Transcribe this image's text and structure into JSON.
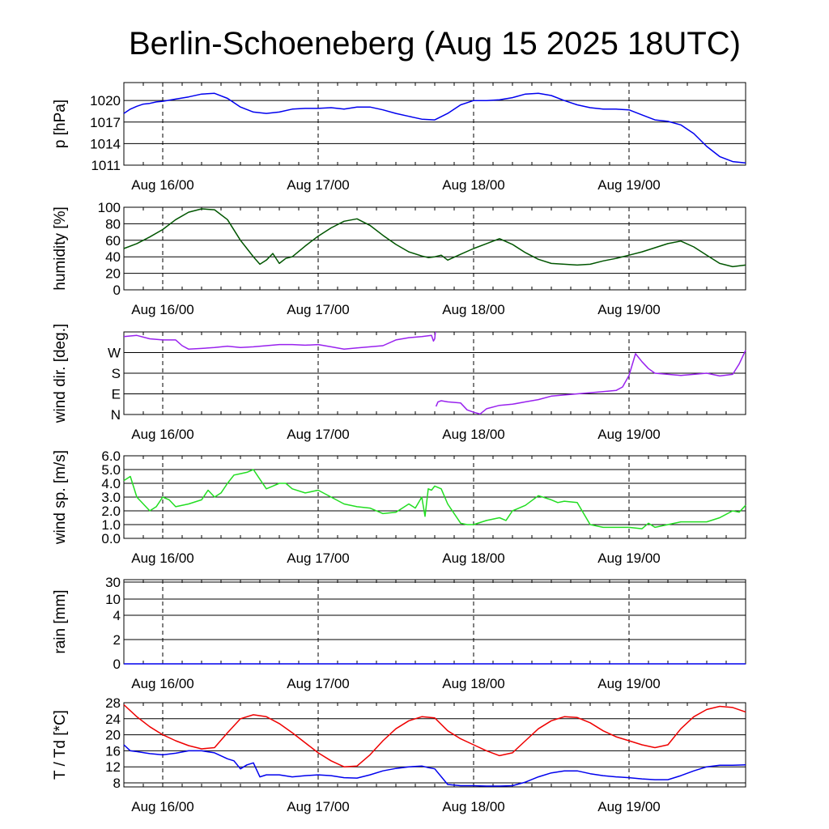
{
  "title": "Berlin-Schoeneberg (Aug 15 2025 18UTC)",
  "time_axis": {
    "tick_labels": [
      "Aug 16/00",
      "Aug 17/00",
      "Aug 18/00",
      "Aug 19/00"
    ],
    "tick_hours": [
      6,
      30,
      54,
      78
    ],
    "range_hours": [
      0,
      96
    ]
  },
  "chart_data": [
    {
      "type": "line",
      "ylabel": "p [hPa]",
      "ylim": [
        1011,
        1022.5
      ],
      "yticks": [
        1011,
        1014,
        1017,
        1020
      ],
      "ytick_labels": [
        "1011",
        "1014",
        "1017",
        "1020"
      ],
      "grid": "horizontal lines at y ticks, dashed vertical lines at day boundaries",
      "series": [
        {
          "color": "#0000ee",
          "x": [
            0,
            1,
            2,
            3,
            4,
            5,
            6,
            8,
            10,
            12,
            14,
            16,
            18,
            20,
            22,
            24,
            26,
            28,
            30,
            32,
            34,
            36,
            38,
            40,
            42,
            44,
            46,
            48,
            50,
            52,
            54,
            56,
            58,
            60,
            62,
            64,
            66,
            68,
            70,
            72,
            74,
            76,
            78,
            80,
            82,
            84,
            86,
            88,
            90,
            92,
            94,
            96
          ],
          "y": [
            1018.2,
            1018.8,
            1019.2,
            1019.5,
            1019.6,
            1019.8,
            1019.9,
            1020.2,
            1020.5,
            1020.9,
            1021.0,
            1020.3,
            1019.1,
            1018.4,
            1018.2,
            1018.4,
            1018.8,
            1018.9,
            1018.9,
            1019.0,
            1018.8,
            1019.1,
            1019.1,
            1018.7,
            1018.2,
            1017.8,
            1017.4,
            1017.3,
            1018.2,
            1019.4,
            1020.0,
            1020.0,
            1020.1,
            1020.4,
            1020.9,
            1021.0,
            1020.7,
            1020.0,
            1019.4,
            1019.0,
            1018.8,
            1018.8,
            1018.7,
            1018.0,
            1017.3,
            1017.1,
            1016.6,
            1015.4,
            1013.6,
            1012.2,
            1011.5,
            1011.3
          ]
        }
      ]
    },
    {
      "type": "line",
      "ylabel": "humidity [%]",
      "ylim": [
        0,
        100
      ],
      "yticks": [
        0,
        20,
        40,
        60,
        80,
        100
      ],
      "ytick_labels": [
        "0",
        "20",
        "40",
        "60",
        "80",
        "100"
      ],
      "grid": "horizontal lines at y ticks, dashed vertical lines at day boundaries",
      "series": [
        {
          "color": "#005500",
          "x": [
            0,
            2,
            4,
            6,
            8,
            10,
            12,
            14,
            16,
            18,
            19,
            20,
            21,
            22,
            23,
            24,
            25,
            26,
            28,
            30,
            32,
            34,
            36,
            38,
            40,
            42,
            44,
            46,
            47,
            48,
            49,
            50,
            52,
            54,
            56,
            58,
            60,
            62,
            64,
            66,
            68,
            70,
            72,
            74,
            76,
            78,
            80,
            82,
            84,
            86,
            88,
            90,
            92,
            94,
            96
          ],
          "y": [
            50,
            56,
            64,
            73,
            85,
            94,
            98,
            97,
            85,
            60,
            50,
            40,
            31,
            36,
            44,
            32,
            38,
            40,
            53,
            65,
            75,
            83,
            86,
            78,
            66,
            55,
            46,
            41,
            39,
            40,
            42,
            36,
            43,
            50,
            56,
            62,
            55,
            45,
            37,
            32,
            31,
            30,
            31,
            35,
            38,
            42,
            46,
            51,
            56,
            59,
            52,
            42,
            32,
            28,
            30
          ]
        }
      ]
    },
    {
      "type": "line",
      "ylabel": "wind dir. [deg.]",
      "ylim": [
        0,
        360
      ],
      "yticks": [
        0,
        90,
        180,
        270
      ],
      "ytick_labels": [
        "N",
        "E",
        "S",
        "W"
      ],
      "grid": "horizontal lines at y ticks, dashed vertical lines at day boundaries",
      "series": [
        {
          "color": "#9922ee",
          "x": [
            0,
            2,
            4,
            6,
            8,
            9,
            10,
            12,
            14,
            16,
            18,
            20,
            22,
            24,
            26,
            28,
            30,
            32,
            34,
            36,
            38,
            40,
            42,
            44,
            46,
            47.5,
            47.8,
            48,
            48.1,
            null,
            48.2,
            48.5,
            49,
            50,
            52,
            53,
            54,
            55,
            56,
            58,
            60,
            62,
            64,
            66,
            68,
            70,
            72,
            74,
            76,
            77,
            78,
            79,
            80,
            81,
            82,
            84,
            86,
            88,
            90,
            92,
            94,
            95,
            96
          ],
          "y": [
            340,
            345,
            330,
            325,
            325,
            300,
            285,
            288,
            292,
            298,
            292,
            295,
            300,
            305,
            305,
            302,
            305,
            295,
            285,
            290,
            295,
            300,
            325,
            335,
            340,
            345,
            320,
            330,
            360,
            null,
            35,
            55,
            60,
            55,
            50,
            20,
            10,
            2,
            25,
            40,
            45,
            55,
            65,
            80,
            85,
            90,
            95,
            100,
            105,
            120,
            170,
            265,
            230,
            200,
            180,
            175,
            170,
            175,
            180,
            168,
            175,
            220,
            280
          ],
          "note": "wraps from 360 (N) back to 0 (N) near Aug 17 ~18UTC"
        }
      ]
    },
    {
      "type": "line",
      "ylabel": "wind sp. [m/s]",
      "ylim": [
        0.0,
        6.0
      ],
      "yticks": [
        0.0,
        1.0,
        2.0,
        3.0,
        4.0,
        5.0,
        6.0
      ],
      "ytick_labels": [
        "0.0",
        "1.0",
        "2.0",
        "3.0",
        "4.0",
        "5.0",
        "6.0"
      ],
      "grid": "horizontal lines at y ticks, dashed vertical lines at day boundaries",
      "series": [
        {
          "color": "#22dd22",
          "x": [
            0,
            1,
            2,
            3,
            4,
            5,
            6,
            7,
            8,
            10,
            12,
            13,
            14,
            15,
            16,
            17,
            18,
            19,
            20,
            21,
            22,
            23,
            24,
            25,
            26,
            28,
            30,
            32,
            34,
            36,
            38,
            40,
            42,
            44,
            45,
            46,
            46.5,
            47,
            47.5,
            48,
            49,
            50,
            51,
            52,
            53,
            54,
            56,
            58,
            59,
            60,
            62,
            64,
            66,
            67,
            68,
            70,
            72,
            74,
            76,
            78,
            80,
            81,
            82,
            84,
            86,
            88,
            90,
            92,
            94,
            95,
            96
          ],
          "y": [
            4.2,
            4.5,
            3.0,
            2.5,
            2.0,
            2.3,
            3.0,
            2.8,
            2.3,
            2.5,
            2.8,
            3.5,
            3.0,
            3.3,
            4.0,
            4.6,
            4.7,
            4.8,
            5.0,
            4.3,
            3.6,
            3.8,
            4.0,
            4.0,
            3.6,
            3.3,
            3.5,
            3.0,
            2.5,
            2.3,
            2.2,
            1.8,
            1.9,
            2.5,
            2.2,
            3.0,
            1.6,
            3.6,
            3.5,
            3.8,
            3.6,
            2.5,
            1.8,
            1.1,
            1.0,
            1.0,
            1.3,
            1.5,
            1.3,
            2.0,
            2.4,
            3.1,
            2.8,
            2.6,
            2.7,
            2.6,
            1.0,
            0.8,
            0.8,
            0.8,
            0.7,
            1.1,
            0.8,
            1.0,
            1.2,
            1.2,
            1.2,
            1.5,
            2.0,
            1.9,
            2.4
          ]
        }
      ]
    },
    {
      "type": "line",
      "ylabel": "rain [mm]",
      "ylim": [
        0,
        30
      ],
      "yticks": [
        0,
        2,
        4,
        10,
        30
      ],
      "ytick_labels": [
        "0",
        "2",
        "4",
        "10",
        "30"
      ],
      "scale": "nonlinear (0, 2, 4, 10, 30 equally spaced at bottom-weighted positions)",
      "grid": "horizontal lines at y ticks, dashed vertical lines at day boundaries",
      "series": [
        {
          "color": "#0000ee",
          "x": [
            0,
            96
          ],
          "y": [
            0,
            0
          ]
        }
      ]
    },
    {
      "type": "line",
      "ylabel": "T / Td [*C]",
      "ylim": [
        7,
        28
      ],
      "yticks": [
        8,
        12,
        16,
        20,
        24,
        28
      ],
      "ytick_labels": [
        "8",
        "12",
        "16",
        "20",
        "24",
        "28"
      ],
      "grid": "horizontal lines at y ticks, dashed vertical lines at day boundaries",
      "series": [
        {
          "color": "#ee0000",
          "x": [
            0,
            2,
            4,
            6,
            8,
            10,
            12,
            14,
            16,
            18,
            20,
            22,
            24,
            26,
            28,
            30,
            32,
            34,
            36,
            38,
            40,
            42,
            44,
            46,
            48,
            50,
            52,
            54,
            56,
            58,
            60,
            62,
            64,
            66,
            68,
            70,
            72,
            74,
            76,
            78,
            80,
            82,
            84,
            86,
            88,
            90,
            92,
            94,
            96
          ],
          "y": [
            27.5,
            24.5,
            22,
            20,
            18.5,
            17.3,
            16.5,
            16.8,
            20.5,
            24,
            25,
            24.5,
            22.8,
            20.5,
            18,
            15.5,
            13.5,
            12,
            12.2,
            15,
            18.5,
            21.5,
            23.5,
            24.5,
            24.2,
            21,
            19,
            17.5,
            16,
            14.8,
            15.5,
            18.5,
            21.5,
            23.5,
            24.5,
            24.3,
            23,
            21,
            19.5,
            18.5,
            17.5,
            16.8,
            17.5,
            21.5,
            24.5,
            26.3,
            27.1,
            26.8,
            25.7
          ]
        },
        {
          "color": "#0000ee",
          "x": [
            0,
            1,
            2,
            4,
            6,
            8,
            10,
            12,
            14,
            16,
            17,
            18,
            19,
            20,
            21,
            22,
            24,
            26,
            28,
            30,
            32,
            34,
            36,
            38,
            40,
            42,
            44,
            46,
            47,
            48,
            50,
            52,
            54,
            56,
            58,
            60,
            62,
            64,
            66,
            68,
            70,
            72,
            74,
            76,
            78,
            80,
            82,
            84,
            86,
            88,
            90,
            92,
            94,
            96
          ],
          "y": [
            17.5,
            16,
            15.8,
            15.3,
            15,
            15.4,
            16,
            16,
            15.5,
            14,
            13.5,
            11.5,
            12.5,
            13,
            9.5,
            10,
            10,
            9.5,
            9.8,
            10,
            9.8,
            9.3,
            9.2,
            10,
            11,
            11.6,
            12,
            12.2,
            11.8,
            11.5,
            7.6,
            7.3,
            7.3,
            7.2,
            7.2,
            7.3,
            8.2,
            9.5,
            10.5,
            11,
            11,
            10.3,
            9.8,
            9.5,
            9.3,
            9,
            8.8,
            8.8,
            9.8,
            11,
            12,
            12.4,
            12.4,
            12.5
          ]
        }
      ]
    }
  ]
}
